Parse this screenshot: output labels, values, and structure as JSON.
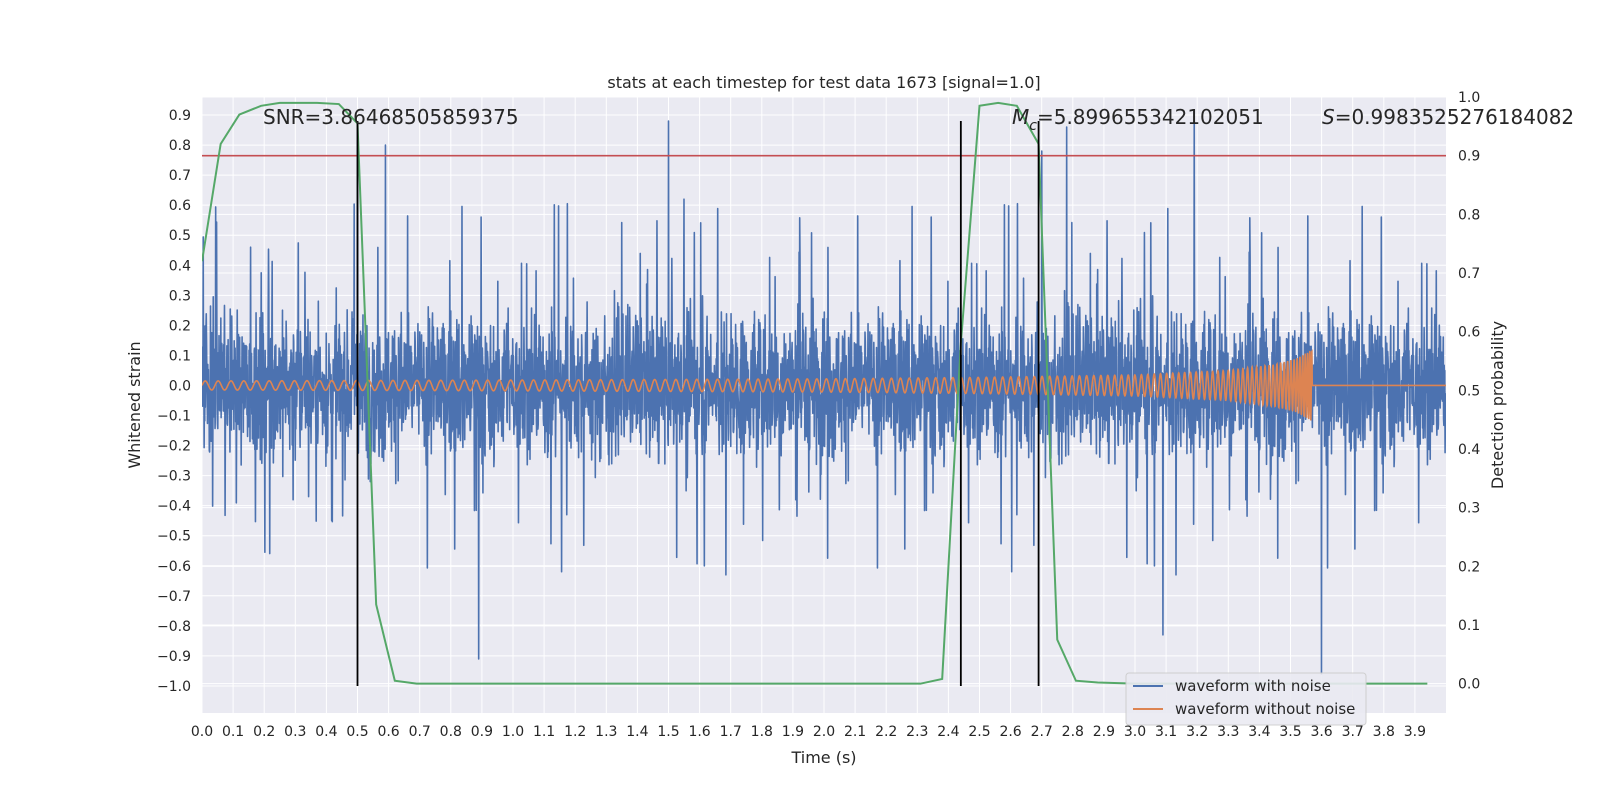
{
  "chart_data": {
    "type": "line",
    "title": "stats at each timestep for test data 1673 [signal=1.0]",
    "xlabel": "Time (s)",
    "ylabel": "Whitened strain",
    "ylabel_right": "Detection probability",
    "xlim": [
      0.0,
      4.0
    ],
    "ylim": [
      -1.09,
      0.96
    ],
    "ylim_right": [
      -0.05,
      1.0
    ],
    "x_ticks": [
      0.0,
      0.1,
      0.2,
      0.3,
      0.4,
      0.5,
      0.6,
      0.7,
      0.8,
      0.9,
      1.0,
      1.1,
      1.2,
      1.3,
      1.4,
      1.5,
      1.6,
      1.7,
      1.8,
      1.9,
      2.0,
      2.1,
      2.2,
      2.3,
      2.4,
      2.5,
      2.6,
      2.7,
      2.8,
      2.9,
      3.0,
      3.1,
      3.2,
      3.3,
      3.4,
      3.5,
      3.6,
      3.7,
      3.8,
      3.9
    ],
    "x_tick_labels": [
      "0.0",
      "0.1",
      "0.2",
      "0.3",
      "0.4",
      "0.5",
      "0.6",
      "0.7",
      "0.8",
      "0.9",
      "1.0",
      "1.1",
      "1.2",
      "1.3",
      "1.4",
      "1.5",
      "1.6",
      "1.7",
      "1.8",
      "1.9",
      "2.0",
      "2.1",
      "2.2",
      "2.3",
      "2.4",
      "2.5",
      "2.6",
      "2.7",
      "2.8",
      "2.9",
      "3.0",
      "3.1",
      "3.2",
      "3.3",
      "3.4",
      "3.5",
      "3.6",
      "3.7",
      "3.8",
      "3.9"
    ],
    "y_ticks": [
      0.9,
      0.8,
      0.7,
      0.6,
      0.5,
      0.4,
      0.3,
      0.2,
      0.1,
      0.0,
      -0.1,
      -0.2,
      -0.3,
      -0.4,
      -0.5,
      -0.6,
      -0.7,
      -0.8,
      -0.9,
      -1.0
    ],
    "y_tick_labels": [
      "0.9",
      "0.8",
      "0.7",
      "0.6",
      "0.5",
      "0.4",
      "0.3",
      "0.2",
      "0.1",
      "0.0",
      "−0.1",
      "−0.2",
      "−0.3",
      "−0.4",
      "−0.5",
      "−0.6",
      "−0.7",
      "−0.8",
      "−0.9",
      "−1.0"
    ],
    "y_right_ticks": [
      1.0,
      0.9,
      0.8,
      0.7,
      0.6,
      0.5,
      0.4,
      0.3,
      0.2,
      0.1,
      0.0
    ],
    "y_right_tick_labels": [
      "1.0",
      "0.9",
      "0.8",
      "0.7",
      "0.6",
      "0.5",
      "0.4",
      "0.3",
      "0.2",
      "0.1",
      "0.0"
    ],
    "series": [
      {
        "name": "waveform with noise",
        "color": "#4c72b0",
        "axis": "left",
        "description": "dense whitened noise, mostly within ±0.35 with spikes to about ±0.9",
        "peak_points": [
          [
            0.5,
            0.85
          ],
          [
            0.59,
            0.8
          ],
          [
            1.5,
            0.88
          ],
          [
            1.55,
            0.62
          ],
          [
            2.7,
            0.78
          ],
          [
            2.78,
            0.86
          ],
          [
            3.19,
            0.88
          ],
          [
            3.6,
            -0.96
          ],
          [
            0.89,
            -0.91
          ],
          [
            3.09,
            -0.83
          ]
        ]
      },
      {
        "name": "waveform without noise",
        "color": "#dd8452",
        "axis": "left",
        "description": "chirp signal, amplitude ~0.02 rising to ~0.12 at merger near t=3.57 s, then flat at 0",
        "merger_time": 3.57,
        "envelope": [
          [
            0.0,
            0.015
          ],
          [
            1.0,
            0.018
          ],
          [
            2.0,
            0.022
          ],
          [
            2.5,
            0.027
          ],
          [
            3.0,
            0.035
          ],
          [
            3.3,
            0.05
          ],
          [
            3.45,
            0.07
          ],
          [
            3.52,
            0.09
          ],
          [
            3.57,
            0.12
          ]
        ]
      },
      {
        "name": "detection probability",
        "color": "#55a868",
        "axis": "right",
        "x": [
          0.0,
          0.03,
          0.06,
          0.12,
          0.19,
          0.25,
          0.31,
          0.37,
          0.44,
          0.5,
          0.56,
          0.62,
          0.69,
          0.75,
          1.0,
          1.5,
          2.0,
          2.31,
          2.38,
          2.44,
          2.5,
          2.56,
          2.62,
          2.69,
          2.75,
          2.81,
          2.88,
          3.0,
          3.5,
          3.94
        ],
        "y": [
          0.72,
          0.82,
          0.92,
          0.97,
          0.985,
          0.99,
          0.99,
          0.99,
          0.988,
          0.955,
          0.135,
          0.005,
          0.0,
          0.0,
          0.0,
          0.0,
          0.0,
          0.0,
          0.008,
          0.58,
          0.985,
          0.99,
          0.985,
          0.92,
          0.075,
          0.005,
          0.002,
          0.0,
          0.0,
          0.0
        ]
      }
    ],
    "threshold": {
      "value": 0.9,
      "axis": "right",
      "color": "#c44e52"
    },
    "vertical_lines": [
      0.5,
      2.44,
      2.69
    ],
    "vlines_range": [
      -1.0,
      0.88
    ],
    "annotations": {
      "snr": "SNR=3.86468505859375",
      "mc_symbol": "M",
      "mc_subscript": "c",
      "mc_value": "=5.899655342102051",
      "s_symbol": "S",
      "s_value": "=0.9983525276184082"
    },
    "legend": [
      "waveform with noise",
      "waveform without noise"
    ],
    "legend_position": "lower-right",
    "grid": true,
    "colors": {
      "background": "#eaeaf2",
      "grid": "#ffffff"
    }
  }
}
